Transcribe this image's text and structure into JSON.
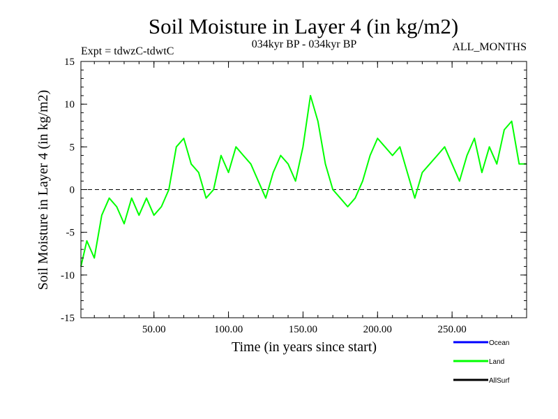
{
  "chart_data": {
    "type": "line",
    "title": "Soil Moisture in Layer 4 (in kg/m2)",
    "subtitle_left": "Expt = tdwzC-tdwtC",
    "subtitle_center": "034kyr BP - 034kyr BP",
    "subtitle_right": "ALL_MONTHS",
    "xlabel": "Time (in years since start)",
    "ylabel": "Soil Moisture in Layer 4 (in kg/m2)",
    "xlim": [
      1,
      300
    ],
    "ylim": [
      -15,
      15
    ],
    "xticks": [
      50,
      100,
      150,
      200,
      250
    ],
    "xtick_labels": [
      "50.00",
      "100.00",
      "150.00",
      "200.00",
      "250.00"
    ],
    "yticks": [
      -15,
      -10,
      -5,
      0,
      5,
      10,
      15
    ],
    "ytick_labels": [
      "-15",
      "-10",
      "-5",
      "0",
      "5",
      "10",
      "15"
    ],
    "zero_line": "dashed",
    "legend": [
      {
        "name": "Ocean",
        "color": "#0000ff"
      },
      {
        "name": "Land",
        "color": "#00ff00"
      },
      {
        "name": "AllSurf",
        "color": "#000000"
      }
    ],
    "series": [
      {
        "name": "Land",
        "color": "#00ff00",
        "x": [
          1,
          5,
          10,
          15,
          20,
          25,
          30,
          35,
          40,
          45,
          50,
          55,
          60,
          65,
          70,
          75,
          80,
          85,
          90,
          95,
          100,
          105,
          110,
          115,
          120,
          125,
          130,
          135,
          140,
          145,
          150,
          155,
          160,
          165,
          170,
          175,
          180,
          185,
          190,
          195,
          200,
          205,
          210,
          215,
          220,
          225,
          230,
          235,
          240,
          245,
          250,
          255,
          260,
          265,
          270,
          275,
          280,
          285,
          290,
          295,
          300
        ],
        "y": [
          -9,
          -6,
          -8,
          -3,
          -1,
          -2,
          -4,
          -1,
          -3,
          -1,
          -3,
          -2,
          0,
          5,
          6,
          3,
          2,
          -1,
          0,
          4,
          2,
          5,
          4,
          3,
          1,
          -1,
          2,
          4,
          3,
          1,
          5,
          11,
          8,
          3,
          0,
          -1,
          -2,
          -1,
          1,
          4,
          6,
          5,
          4,
          5,
          2,
          -1,
          2,
          3,
          4,
          5,
          3,
          1,
          4,
          6,
          2,
          5,
          3,
          7,
          8,
          3,
          3
        ]
      }
    ]
  }
}
